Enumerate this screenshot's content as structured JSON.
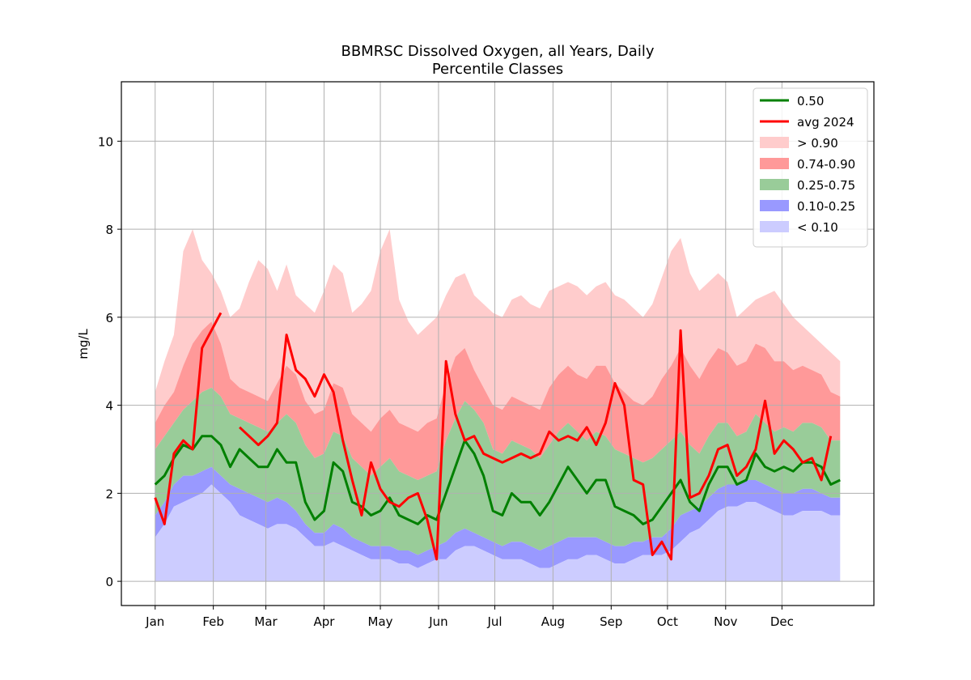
{
  "chart_data": {
    "type": "area",
    "title_line1": "BBMRSC Dissolved Oxygen, all Years, Daily",
    "title_line2": "Percentile Classes",
    "ylabel": "mg/L",
    "xlabel": "",
    "ylim": [
      -0.55,
      11.35
    ],
    "xlim": [
      -18,
      383
    ],
    "grid": true,
    "legend_position": "top-right",
    "month_ticks": [
      {
        "label": "Jan",
        "day": 0
      },
      {
        "label": "Feb",
        "day": 31
      },
      {
        "label": "Mar",
        "day": 59
      },
      {
        "label": "Apr",
        "day": 90
      },
      {
        "label": "May",
        "day": 120
      },
      {
        "label": "Jun",
        "day": 151
      },
      {
        "label": "Jul",
        "day": 181
      },
      {
        "label": "Aug",
        "day": 212
      },
      {
        "label": "Sep",
        "day": 243
      },
      {
        "label": "Oct",
        "day": 273
      },
      {
        "label": "Nov",
        "day": 304
      },
      {
        "label": "Dec",
        "day": 334
      }
    ],
    "y_ticks": [
      0,
      2,
      4,
      6,
      8,
      10
    ],
    "band_colors": {
      "p90_max": "#ffcccc",
      "p74_p90": "#ff9999",
      "p25_p75": "#99cc99",
      "p10_p25": "#9999ff",
      "min_p10": "#ccccff"
    },
    "series_colors": {
      "median": "#008000",
      "avg_2024": "#ff0000"
    },
    "legend": [
      {
        "label": "0.50",
        "kind": "line",
        "color": "#008000"
      },
      {
        "label": "avg 2024",
        "kind": "line",
        "color": "#ff0000"
      },
      {
        "label": "> 0.90",
        "kind": "patch",
        "color": "#ffcccc"
      },
      {
        "label": "0.74-0.90",
        "kind": "patch",
        "color": "#ff9999"
      },
      {
        "label": "0.25-0.75",
        "kind": "patch",
        "color": "#99cc99"
      },
      {
        "label": "0.10-0.25",
        "kind": "patch",
        "color": "#9999ff"
      },
      {
        "label": "< 0.10",
        "kind": "patch",
        "color": "#ccccff"
      }
    ],
    "anchor_day": [
      0,
      5,
      10,
      15,
      20,
      25,
      30,
      35,
      40,
      45,
      50,
      55,
      60,
      65,
      70,
      75,
      80,
      85,
      90,
      95,
      100,
      105,
      110,
      115,
      120,
      125,
      130,
      135,
      140,
      145,
      150,
      155,
      160,
      165,
      170,
      175,
      180,
      185,
      190,
      195,
      200,
      205,
      210,
      215,
      220,
      225,
      230,
      235,
      240,
      245,
      250,
      255,
      260,
      265,
      270,
      275,
      280,
      285,
      290,
      295,
      300,
      305,
      310,
      315,
      320,
      325,
      330,
      335,
      340,
      345,
      350,
      355,
      360,
      365
    ],
    "median": [
      2.2,
      2.4,
      2.8,
      3.1,
      3.0,
      3.3,
      3.3,
      3.1,
      2.6,
      3.0,
      2.8,
      2.6,
      2.6,
      3.0,
      2.7,
      2.7,
      1.8,
      1.4,
      1.6,
      2.7,
      2.5,
      1.8,
      1.7,
      1.5,
      1.6,
      1.9,
      1.5,
      1.4,
      1.3,
      1.5,
      1.4,
      2.0,
      2.6,
      3.2,
      2.9,
      2.4,
      1.6,
      1.5,
      2.0,
      1.8,
      1.8,
      1.5,
      1.8,
      2.2,
      2.6,
      2.3,
      2.0,
      2.3,
      2.3,
      1.7,
      1.6,
      1.5,
      1.3,
      1.4,
      1.7,
      2.0,
      2.3,
      1.8,
      1.6,
      2.2,
      2.6,
      2.6,
      2.2,
      2.3,
      2.9,
      2.6,
      2.5,
      2.6,
      2.5,
      2.7,
      2.7,
      2.6,
      2.2,
      2.3
    ],
    "avg_2024": [
      1.9,
      1.3,
      2.9,
      3.2,
      3.0,
      5.3,
      5.7,
      6.1,
      null,
      3.5,
      3.3,
      3.1,
      3.3,
      3.6,
      5.6,
      4.8,
      4.6,
      4.2,
      4.7,
      4.3,
      3.2,
      2.3,
      1.5,
      2.7,
      2.1,
      1.8,
      1.7,
      1.9,
      2.0,
      1.4,
      0.5,
      5.0,
      3.8,
      3.2,
      3.3,
      2.9,
      2.8,
      2.7,
      2.8,
      2.9,
      2.8,
      2.9,
      3.4,
      3.2,
      3.3,
      3.2,
      3.5,
      3.1,
      3.6,
      4.5,
      4.0,
      2.3,
      2.2,
      0.6,
      0.9,
      0.5,
      5.7,
      1.9,
      2.0,
      2.4,
      3.0,
      3.1,
      2.4,
      2.6,
      3.0,
      4.1,
      2.9,
      3.2,
      3.0,
      2.7,
      2.8,
      2.3,
      3.3,
      null
    ],
    "p10": [
      1.0,
      1.3,
      1.7,
      1.8,
      1.9,
      2.0,
      2.2,
      2.0,
      1.8,
      1.5,
      1.4,
      1.3,
      1.2,
      1.3,
      1.3,
      1.2,
      1.0,
      0.8,
      0.8,
      0.9,
      0.8,
      0.7,
      0.6,
      0.5,
      0.5,
      0.5,
      0.4,
      0.4,
      0.3,
      0.4,
      0.5,
      0.5,
      0.7,
      0.8,
      0.8,
      0.7,
      0.6,
      0.5,
      0.5,
      0.5,
      0.4,
      0.3,
      0.3,
      0.4,
      0.5,
      0.5,
      0.6,
      0.6,
      0.5,
      0.4,
      0.4,
      0.5,
      0.6,
      0.6,
      0.6,
      0.7,
      0.9,
      1.1,
      1.2,
      1.4,
      1.6,
      1.7,
      1.7,
      1.8,
      1.8,
      1.7,
      1.6,
      1.5,
      1.5,
      1.6,
      1.6,
      1.6,
      1.5,
      1.5
    ],
    "p25": [
      1.5,
      1.8,
      2.2,
      2.4,
      2.4,
      2.5,
      2.6,
      2.4,
      2.2,
      2.1,
      2.0,
      1.9,
      1.8,
      1.9,
      1.8,
      1.6,
      1.3,
      1.1,
      1.1,
      1.3,
      1.2,
      1.0,
      0.9,
      0.8,
      0.8,
      0.8,
      0.7,
      0.7,
      0.6,
      0.7,
      0.8,
      0.9,
      1.1,
      1.2,
      1.1,
      1.0,
      0.9,
      0.8,
      0.9,
      0.9,
      0.8,
      0.7,
      0.8,
      0.9,
      1.0,
      1.0,
      1.0,
      1.0,
      0.9,
      0.8,
      0.8,
      0.9,
      0.9,
      1.0,
      1.0,
      1.2,
      1.5,
      1.6,
      1.7,
      1.9,
      2.1,
      2.2,
      2.2,
      2.3,
      2.3,
      2.2,
      2.1,
      2.0,
      2.0,
      2.1,
      2.1,
      2.0,
      1.9,
      1.9
    ],
    "p75": [
      3.0,
      3.3,
      3.6,
      3.9,
      4.1,
      4.3,
      4.4,
      4.2,
      3.8,
      3.7,
      3.6,
      3.5,
      3.4,
      3.6,
      3.8,
      3.6,
      3.1,
      2.8,
      2.9,
      3.4,
      3.3,
      2.8,
      2.6,
      2.4,
      2.6,
      2.8,
      2.5,
      2.4,
      2.3,
      2.4,
      2.5,
      3.2,
      3.7,
      4.1,
      3.9,
      3.6,
      3.0,
      2.9,
      3.2,
      3.1,
      3.0,
      2.8,
      3.1,
      3.4,
      3.6,
      3.4,
      3.2,
      3.4,
      3.3,
      3.0,
      2.9,
      2.8,
      2.7,
      2.8,
      3.0,
      3.2,
      3.4,
      3.1,
      2.9,
      3.3,
      3.6,
      3.6,
      3.3,
      3.4,
      3.8,
      3.6,
      3.4,
      3.5,
      3.4,
      3.6,
      3.6,
      3.5,
      3.2,
      3.2
    ],
    "p90": [
      3.6,
      4.0,
      4.3,
      4.9,
      5.4,
      5.7,
      5.9,
      5.4,
      4.6,
      4.4,
      4.3,
      4.2,
      4.1,
      4.5,
      4.9,
      4.7,
      4.1,
      3.8,
      3.9,
      4.5,
      4.4,
      3.8,
      3.6,
      3.4,
      3.7,
      3.9,
      3.6,
      3.5,
      3.4,
      3.6,
      3.7,
      4.5,
      5.1,
      5.3,
      4.8,
      4.4,
      4.0,
      3.9,
      4.2,
      4.1,
      4.0,
      3.9,
      4.4,
      4.7,
      4.9,
      4.7,
      4.6,
      4.9,
      4.9,
      4.5,
      4.3,
      4.1,
      4.0,
      4.2,
      4.6,
      4.9,
      5.3,
      4.9,
      4.6,
      5.0,
      5.3,
      5.2,
      4.9,
      5.0,
      5.4,
      5.3,
      5.0,
      5.0,
      4.8,
      4.9,
      4.8,
      4.7,
      4.3,
      4.2
    ],
    "pmax": [
      4.3,
      5.0,
      5.6,
      7.5,
      8.0,
      7.3,
      7.0,
      6.6,
      6.0,
      6.2,
      6.8,
      7.3,
      7.1,
      6.6,
      7.2,
      6.5,
      6.3,
      6.1,
      6.6,
      7.2,
      7.0,
      6.1,
      6.3,
      6.6,
      7.5,
      8.0,
      6.4,
      5.9,
      5.6,
      5.8,
      6.0,
      6.5,
      6.9,
      7.0,
      6.5,
      6.3,
      6.1,
      6.0,
      6.4,
      6.5,
      6.3,
      6.2,
      6.6,
      6.7,
      6.8,
      6.7,
      6.5,
      6.7,
      6.8,
      6.5,
      6.4,
      6.2,
      6.0,
      6.3,
      6.9,
      7.5,
      7.8,
      7.0,
      6.6,
      6.8,
      7.0,
      6.8,
      6.0,
      6.2,
      6.4,
      6.5,
      6.6,
      6.3,
      6.0,
      5.8,
      5.6,
      5.4,
      5.2,
      5.0
    ]
  }
}
